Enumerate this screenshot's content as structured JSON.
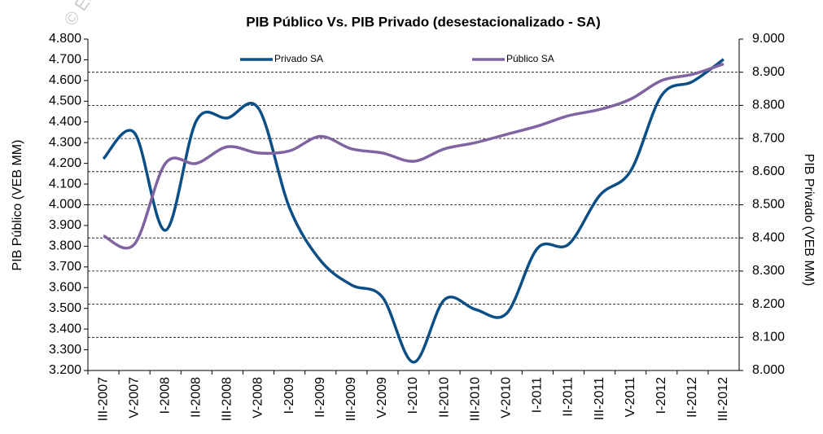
{
  "chart_data": {
    "type": "line",
    "title": "PIB Público Vs. PIB Privado (desestacionalizado - SA)",
    "watermark": "© Ec",
    "y_label": "PIB Público (VEB MM)",
    "y2_label": "PIB Privado (VEB MM)",
    "categories": [
      "III-2007",
      "V-2007",
      "I-2008",
      "II-2008",
      "III-2008",
      "V-2008",
      "I-2009",
      "II-2009",
      "III-2009",
      "V-2009",
      "I-2010",
      "II-2010",
      "III-2010",
      "V-2010",
      "I-2011",
      "II-2011",
      "III-2011",
      "V-2011",
      "I-2012",
      "II-2012",
      "III-2012"
    ],
    "series": [
      {
        "name": "Privado SA",
        "color": "#0b4f86",
        "axis": "y2",
        "values": [
          8639,
          8717,
          8423,
          8754,
          8762,
          8791,
          8491,
          8332,
          8258,
          8221,
          8025,
          8214,
          8184,
          8172,
          8369,
          8381,
          8528,
          8602,
          8830,
          8872,
          8939
        ]
      },
      {
        "name": "Público SA",
        "color": "#8064a2",
        "values": [
          3850,
          3810,
          4200,
          4200,
          4280,
          4250,
          4260,
          4330,
          4270,
          4250,
          4210,
          4270,
          4300,
          4340,
          4380,
          4430,
          4460,
          4510,
          4600,
          4630,
          4680
        ]
      }
    ],
    "ylim": [
      3200,
      4800
    ],
    "yticks": [
      {
        "value": 3200,
        "label": "3.200"
      },
      {
        "value": 3300,
        "label": "3.300"
      },
      {
        "value": 3400,
        "label": "3.400"
      },
      {
        "value": 3500,
        "label": "3.500"
      },
      {
        "value": 3600,
        "label": "3.600"
      },
      {
        "value": 3700,
        "label": "3.700"
      },
      {
        "value": 3800,
        "label": "3.800"
      },
      {
        "value": 3900,
        "label": "3.900"
      },
      {
        "value": 4000,
        "label": "4.000"
      },
      {
        "value": 4100,
        "label": "4.100"
      },
      {
        "value": 4200,
        "label": "4.200"
      },
      {
        "value": 4300,
        "label": "4.300"
      },
      {
        "value": 4400,
        "label": "4.400"
      },
      {
        "value": 4500,
        "label": "4.500"
      },
      {
        "value": 4600,
        "label": "4.600"
      },
      {
        "value": 4700,
        "label": "4.700"
      },
      {
        "value": 4800,
        "label": "4.800"
      }
    ],
    "y2lim": [
      8000,
      9000
    ],
    "y2ticks": [
      {
        "value": 8000,
        "label": "8.000"
      },
      {
        "value": 8100,
        "label": "8.100"
      },
      {
        "value": 8200,
        "label": "8.200"
      },
      {
        "value": 8300,
        "label": "8.300"
      },
      {
        "value": 8400,
        "label": "8.400"
      },
      {
        "value": 8500,
        "label": "8.500"
      },
      {
        "value": 8600,
        "label": "8.600"
      },
      {
        "value": 8700,
        "label": "8.700"
      },
      {
        "value": 8800,
        "label": "8.800"
      },
      {
        "value": 8900,
        "label": "8.900"
      },
      {
        "value": 9000,
        "label": "9.000"
      }
    ],
    "grid": "y2"
  }
}
